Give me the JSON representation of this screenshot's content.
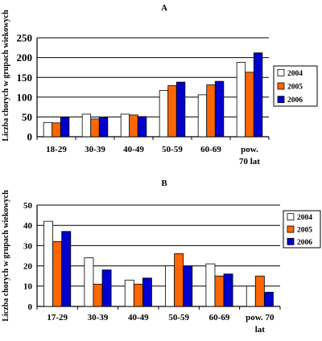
{
  "colors": {
    "2004": "#ffffff",
    "2005": "#ff6600",
    "2006": "#0000cc",
    "stroke": "#000000",
    "grid": "#000000"
  },
  "chart_data": [
    {
      "type": "bar",
      "title": "A",
      "ylabel": "Liczba chorych w grupach wiekowych",
      "ylim": [
        0,
        250
      ],
      "yticks": [
        0,
        50,
        100,
        150,
        200,
        250
      ],
      "grid": true,
      "legend": "right",
      "categories": [
        "18-29",
        "30-39",
        "40-49",
        "50-59",
        "60-69",
        "pow. 70 lat"
      ],
      "series": [
        {
          "name": "2004",
          "values": [
            36,
            57,
            57,
            117,
            106,
            188
          ]
        },
        {
          "name": "2005",
          "values": [
            35,
            45,
            55,
            129,
            131,
            163
          ]
        },
        {
          "name": "2006",
          "values": [
            49,
            48,
            51,
            138,
            140,
            212
          ]
        }
      ]
    },
    {
      "type": "bar",
      "title": "B",
      "ylabel": "Liczba chorych w grupach wiekowych",
      "ylim": [
        0,
        50
      ],
      "yticks": [
        0,
        10,
        20,
        30,
        40,
        50
      ],
      "grid": true,
      "legend": "right",
      "categories": [
        "17-29",
        "30-39",
        "40-49",
        "50-59",
        "60-69",
        "pow. 70 lat"
      ],
      "series": [
        {
          "name": "2004",
          "values": [
            42,
            24,
            13,
            20,
            21,
            10
          ]
        },
        {
          "name": "2005",
          "values": [
            32,
            11,
            11,
            26,
            15,
            15
          ]
        },
        {
          "name": "2006",
          "values": [
            37,
            18,
            14,
            20,
            16,
            7
          ]
        }
      ]
    }
  ]
}
